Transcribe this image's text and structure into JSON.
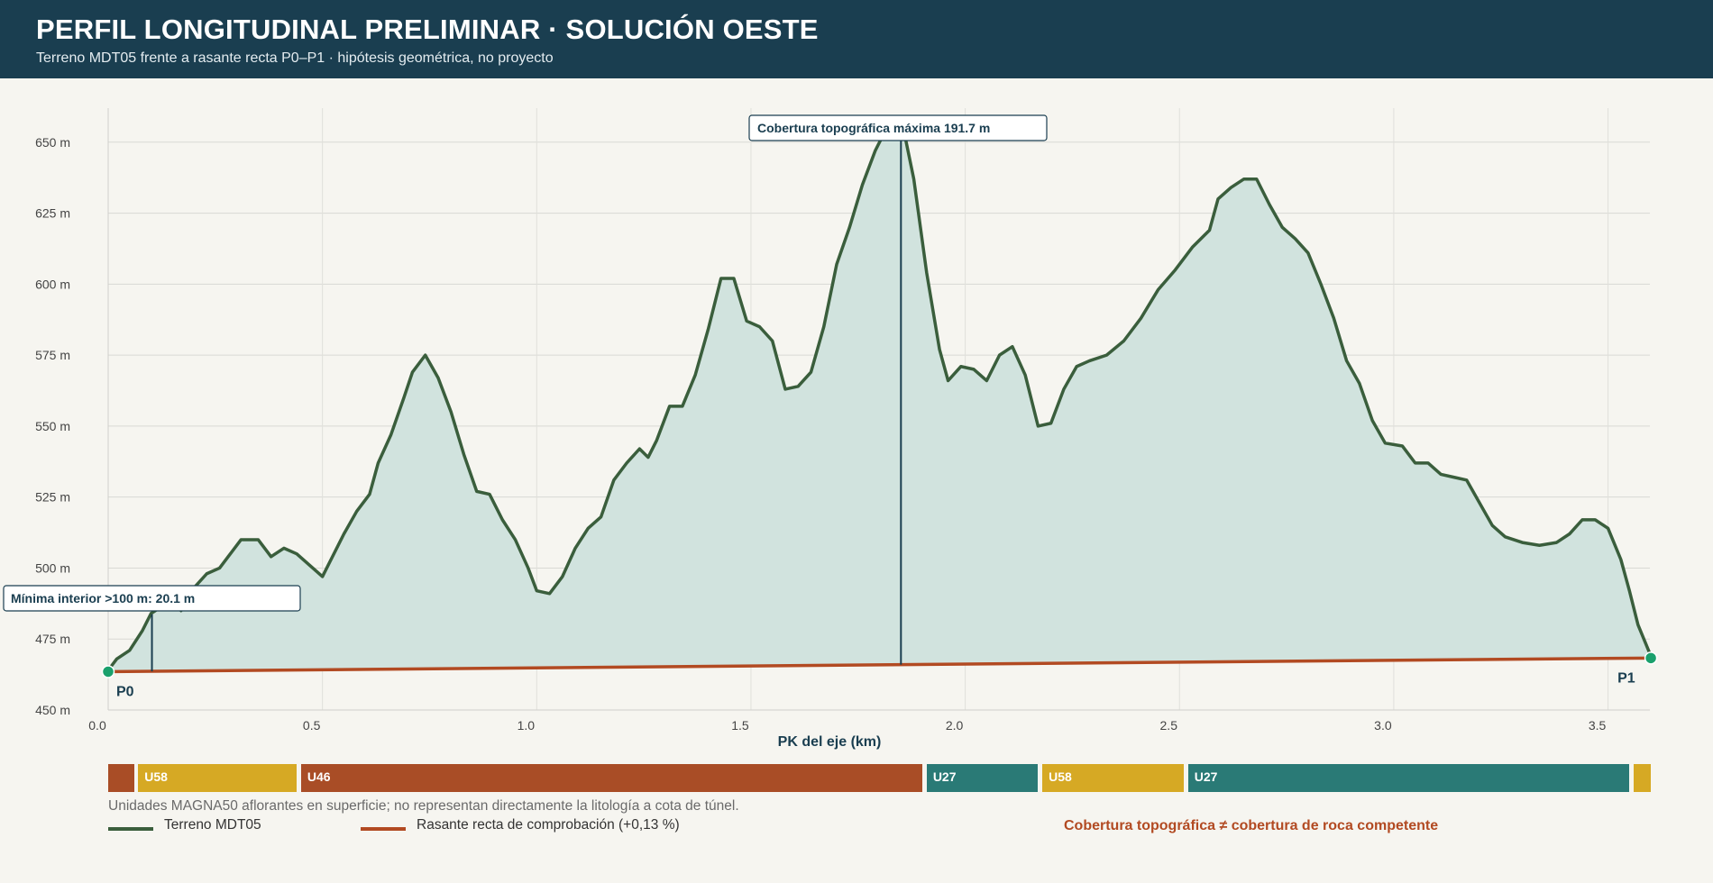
{
  "header": {
    "title": "PERFIL LONGITUDINAL PRELIMINAR · SOLUCIÓN OESTE",
    "subtitle": "Terreno MDT05 frente a rasante recta P0–P1 · hipótesis geométrica, no proyecto"
  },
  "chart_data": {
    "type": "area",
    "xlabel": "PK del eje (km)",
    "ylabel": "",
    "xlim": [
      0,
      3.6
    ],
    "ylim": [
      450,
      662
    ],
    "x_ticks": [
      0.0,
      0.5,
      1.0,
      1.5,
      2.0,
      2.5,
      3.0,
      3.5
    ],
    "x_tick_labels": [
      "0.0",
      "0.5",
      "1.0",
      "1.5",
      "2.0",
      "2.5",
      "3.0",
      "3.5"
    ],
    "y_ticks": [
      450,
      475,
      500,
      525,
      550,
      575,
      600,
      625,
      650
    ],
    "y_tick_labels": [
      "450 m",
      "475 m",
      "500 m",
      "525 m",
      "550 m",
      "575 m",
      "600 m",
      "625 m",
      "650 m"
    ],
    "grid": true,
    "series": [
      {
        "name": "Terreno MDT05",
        "color": "#3a5e3c",
        "fill": "#d1e3de",
        "points": [
          [
            0,
            464
          ],
          [
            0.02,
            468
          ],
          [
            0.05,
            471
          ],
          [
            0.08,
            478
          ],
          [
            0.1,
            484
          ],
          [
            0.13,
            487
          ],
          [
            0.15,
            489
          ],
          [
            0.17,
            485
          ],
          [
            0.2,
            493
          ],
          [
            0.23,
            498
          ],
          [
            0.26,
            500
          ],
          [
            0.28,
            504
          ],
          [
            0.31,
            510
          ],
          [
            0.35,
            510
          ],
          [
            0.38,
            504
          ],
          [
            0.41,
            507
          ],
          [
            0.44,
            505
          ],
          [
            0.47,
            501
          ],
          [
            0.5,
            497
          ],
          [
            0.52,
            503
          ],
          [
            0.55,
            512
          ],
          [
            0.58,
            520
          ],
          [
            0.61,
            526
          ],
          [
            0.63,
            537
          ],
          [
            0.66,
            547
          ],
          [
            0.69,
            560
          ],
          [
            0.71,
            569
          ],
          [
            0.74,
            575
          ],
          [
            0.77,
            567
          ],
          [
            0.8,
            555
          ],
          [
            0.83,
            540
          ],
          [
            0.86,
            527
          ],
          [
            0.89,
            526
          ],
          [
            0.92,
            517
          ],
          [
            0.95,
            510
          ],
          [
            0.98,
            500
          ],
          [
            1.0,
            492
          ],
          [
            1.03,
            491
          ],
          [
            1.06,
            497
          ],
          [
            1.09,
            507
          ],
          [
            1.12,
            514
          ],
          [
            1.15,
            518
          ],
          [
            1.18,
            531
          ],
          [
            1.21,
            537
          ],
          [
            1.24,
            542
          ],
          [
            1.26,
            539
          ],
          [
            1.28,
            545
          ],
          [
            1.31,
            557
          ],
          [
            1.34,
            557
          ],
          [
            1.37,
            568
          ],
          [
            1.4,
            584
          ],
          [
            1.43,
            602
          ],
          [
            1.46,
            602
          ],
          [
            1.49,
            587
          ],
          [
            1.52,
            585
          ],
          [
            1.55,
            580
          ],
          [
            1.58,
            563
          ],
          [
            1.61,
            564
          ],
          [
            1.64,
            569
          ],
          [
            1.67,
            585
          ],
          [
            1.7,
            607
          ],
          [
            1.73,
            620
          ],
          [
            1.76,
            635
          ],
          [
            1.79,
            647
          ],
          [
            1.82,
            656
          ],
          [
            1.85,
            659
          ],
          [
            1.88,
            637
          ],
          [
            1.91,
            604
          ],
          [
            1.94,
            577
          ],
          [
            1.96,
            566
          ],
          [
            1.99,
            571
          ],
          [
            2.02,
            570
          ],
          [
            2.05,
            566
          ],
          [
            2.08,
            575
          ],
          [
            2.11,
            578
          ],
          [
            2.14,
            568
          ],
          [
            2.17,
            550
          ],
          [
            2.2,
            551
          ],
          [
            2.23,
            563
          ],
          [
            2.26,
            571
          ],
          [
            2.29,
            573
          ],
          [
            2.33,
            575
          ],
          [
            2.37,
            580
          ],
          [
            2.41,
            588
          ],
          [
            2.45,
            598
          ],
          [
            2.49,
            605
          ],
          [
            2.53,
            613
          ],
          [
            2.57,
            619
          ],
          [
            2.59,
            630
          ],
          [
            2.62,
            634
          ],
          [
            2.65,
            637
          ],
          [
            2.68,
            637
          ],
          [
            2.71,
            628
          ],
          [
            2.74,
            620
          ],
          [
            2.77,
            616
          ],
          [
            2.8,
            611
          ],
          [
            2.83,
            600
          ],
          [
            2.86,
            588
          ],
          [
            2.89,
            573
          ],
          [
            2.92,
            565
          ],
          [
            2.95,
            552
          ],
          [
            2.98,
            544
          ],
          [
            3.02,
            543
          ],
          [
            3.05,
            537
          ],
          [
            3.08,
            537
          ],
          [
            3.11,
            533
          ],
          [
            3.14,
            532
          ],
          [
            3.17,
            531
          ],
          [
            3.2,
            523
          ],
          [
            3.23,
            515
          ],
          [
            3.26,
            511
          ],
          [
            3.3,
            509
          ],
          [
            3.34,
            508
          ],
          [
            3.38,
            509
          ],
          [
            3.41,
            512
          ],
          [
            3.44,
            517
          ],
          [
            3.47,
            517
          ],
          [
            3.5,
            514
          ],
          [
            3.53,
            503
          ],
          [
            3.55,
            492
          ],
          [
            3.57,
            480
          ],
          [
            3.6,
            469
          ]
        ]
      },
      {
        "name": "Rasante recta de comprobación (+0,13 %)",
        "color": "#b24a22",
        "points": [
          [
            0,
            463.5
          ],
          [
            3.6,
            468.3
          ]
        ]
      }
    ],
    "markers": [
      {
        "label": "P0",
        "x": 0,
        "y": 463.5,
        "color": "#1aa06c"
      },
      {
        "label": "P1",
        "x": 3.6,
        "y": 468.3,
        "color": "#1aa06c"
      }
    ],
    "annotations": [
      {
        "text": "Cobertura topográfica máxima 191.7 m",
        "x": 1.85,
        "y_top": 658,
        "y_bottom": 466
      },
      {
        "text": "Mínima interior >100 m: 20.1 m",
        "x": 0.1,
        "y_top": 483.7,
        "y_bottom": 463.6
      }
    ]
  },
  "geology": {
    "units": [
      {
        "label": "",
        "from": 0.0,
        "to": 0.06,
        "color": "#a94d26"
      },
      {
        "label": "U58",
        "from": 0.07,
        "to": 0.44,
        "color": "#d6a924"
      },
      {
        "label": "U46",
        "from": 0.45,
        "to": 1.9,
        "color": "#a94d26"
      },
      {
        "label": "U27",
        "from": 1.91,
        "to": 2.17,
        "color": "#2a7a76"
      },
      {
        "label": "U58",
        "from": 2.18,
        "to": 2.51,
        "color": "#d6a924"
      },
      {
        "label": "U27",
        "from": 2.52,
        "to": 3.55,
        "color": "#2a7a76"
      },
      {
        "label": "",
        "from": 3.56,
        "to": 3.6,
        "color": "#d6a924"
      }
    ],
    "note": "Unidades MAGNA50 aflorantes en superficie; no representan directamente la litología a cota de túnel."
  },
  "legend": {
    "terrain": "Terreno MDT05",
    "rasante": "Rasante recta de comprobación (+0,13 %)",
    "warning": "Cobertura topográfica ≠ cobertura de roca competente"
  }
}
